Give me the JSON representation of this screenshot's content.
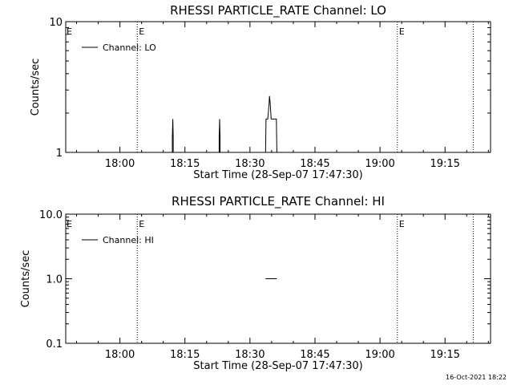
{
  "chart_data": [
    {
      "type": "line",
      "title": "RHESSI PARTICLE_RATE Channel: LO",
      "xlabel": "Start Time (28-Sep-07 17:47:30)",
      "ylabel": "Counts/sec",
      "yscale": "log",
      "ylim": [
        1,
        10
      ],
      "xlim_minutes": [
        0,
        98
      ],
      "x_tick_labels": [
        "18:00",
        "18:15",
        "18:30",
        "18:45",
        "19:00",
        "19:15"
      ],
      "x_tick_minutes": [
        12.5,
        27.5,
        42.5,
        57.5,
        72.5,
        87.5
      ],
      "y_tick_labels": [
        "1",
        "10"
      ],
      "legend": {
        "entries": [
          "Channel: LO"
        ],
        "position": "top-left"
      },
      "event_lines": [
        {
          "minute": 16.5,
          "label": "E"
        },
        {
          "minute": 76.5,
          "label": "E"
        },
        {
          "minute": 94.0,
          "label": ""
        }
      ],
      "series": [
        {
          "name": "Channel: LO",
          "points": [
            [
              24.6,
              1
            ],
            [
              24.6,
              1.3
            ],
            [
              24.7,
              1.8
            ],
            [
              24.8,
              1.3
            ],
            [
              24.8,
              1
            ],
            [
              35.4,
              1
            ],
            [
              35.4,
              1.3
            ],
            [
              35.5,
              1.8
            ],
            [
              35.6,
              1.3
            ],
            [
              35.6,
              1
            ],
            [
              46.1,
              1
            ],
            [
              46.2,
              1.8
            ],
            [
              46.6,
              1.8
            ],
            [
              46.9,
              2.3
            ],
            [
              47.0,
              2.7
            ],
            [
              47.2,
              2.3
            ],
            [
              47.4,
              1.8
            ],
            [
              48.6,
              1.8
            ],
            [
              48.7,
              1
            ]
          ]
        }
      ]
    },
    {
      "type": "line",
      "title": "RHESSI PARTICLE_RATE Channel: HI",
      "xlabel": "Start Time (28-Sep-07 17:47:30)",
      "ylabel": "Counts/sec",
      "yscale": "log",
      "ylim": [
        0.1,
        10
      ],
      "xlim_minutes": [
        0,
        98
      ],
      "x_tick_labels": [
        "18:00",
        "18:15",
        "18:30",
        "18:45",
        "19:00",
        "19:15"
      ],
      "x_tick_minutes": [
        12.5,
        27.5,
        42.5,
        57.5,
        72.5,
        87.5
      ],
      "y_tick_labels": [
        "0.1",
        "1.0",
        "10.0"
      ],
      "legend": {
        "entries": [
          "Channel: HI"
        ],
        "position": "top-left"
      },
      "event_lines": [
        {
          "minute": 16.5,
          "label": "E"
        },
        {
          "minute": 76.5,
          "label": "E"
        },
        {
          "minute": 94.0,
          "label": ""
        }
      ],
      "series": [
        {
          "name": "Channel: HI",
          "points": [
            [
              46.1,
              1.0
            ],
            [
              48.7,
              1.0
            ]
          ]
        }
      ]
    }
  ],
  "footer": {
    "timestamp": "16-Oct-2021 18:22"
  }
}
